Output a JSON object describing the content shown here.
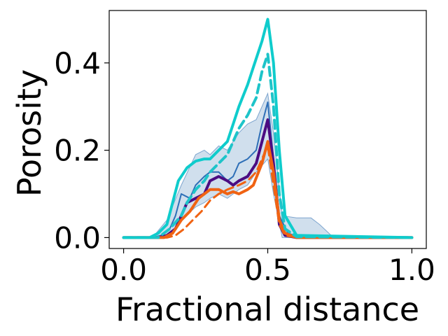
{
  "chart_data": {
    "type": "line",
    "title": "",
    "xlabel": "Fractional distance",
    "ylabel": "Porosity",
    "xlim": [
      -0.05,
      1.05
    ],
    "ylim": [
      -0.025,
      0.52
    ],
    "xticks": [
      0.0,
      0.5,
      1.0
    ],
    "xtick_labels": [
      "0.0",
      "0.5",
      "1.0"
    ],
    "yticks": [
      0.0,
      0.2,
      0.4
    ],
    "ytick_labels": [
      "0.0",
      "0.2",
      "0.4"
    ],
    "grid": false,
    "legend": "none",
    "band": {
      "color": "#a9c4df",
      "x": [
        0.1,
        0.15,
        0.2,
        0.25,
        0.28,
        0.3,
        0.33,
        0.36,
        0.4,
        0.43,
        0.46,
        0.5,
        0.52,
        0.55,
        0.6,
        0.65,
        0.68,
        0.72,
        0.75
      ],
      "upper": [
        0.0,
        0.04,
        0.12,
        0.19,
        0.2,
        0.19,
        0.21,
        0.2,
        0.24,
        0.26,
        0.27,
        0.33,
        0.24,
        0.05,
        0.045,
        0.045,
        0.03,
        0.005,
        0.0
      ],
      "lower": [
        0.0,
        0.0,
        0.04,
        0.07,
        0.08,
        0.09,
        0.1,
        0.09,
        0.11,
        0.12,
        0.15,
        0.18,
        0.1,
        0.0,
        0.0,
        0.0,
        0.0,
        0.0,
        0.0
      ]
    },
    "series": [
      {
        "color": "#2e6fb7",
        "width": 2,
        "dash": "",
        "x": [
          0.0,
          0.1,
          0.13,
          0.16,
          0.18,
          0.2,
          0.23,
          0.25,
          0.28,
          0.3,
          0.33,
          0.36,
          0.38,
          0.4,
          0.43,
          0.46,
          0.48,
          0.5,
          0.52,
          0.54,
          0.57,
          0.6,
          0.65,
          1.0
        ],
        "y": [
          0.0,
          0.0,
          0.005,
          0.02,
          0.05,
          0.1,
          0.09,
          0.12,
          0.14,
          0.15,
          0.15,
          0.13,
          0.14,
          0.17,
          0.18,
          0.2,
          0.26,
          0.31,
          0.18,
          0.05,
          0.01,
          0.003,
          0.0,
          0.0
        ]
      },
      {
        "color": "#4b0c82",
        "width": 4,
        "dash": "",
        "x": [
          0.0,
          0.12,
          0.15,
          0.18,
          0.2,
          0.22,
          0.25,
          0.28,
          0.3,
          0.33,
          0.36,
          0.38,
          0.4,
          0.43,
          0.46,
          0.48,
          0.5,
          0.52,
          0.54,
          0.56,
          0.6,
          1.0
        ],
        "y": [
          0.0,
          0.0,
          0.005,
          0.02,
          0.05,
          0.08,
          0.09,
          0.1,
          0.13,
          0.14,
          0.13,
          0.12,
          0.13,
          0.14,
          0.17,
          0.22,
          0.27,
          0.17,
          0.03,
          0.005,
          0.0,
          0.0
        ]
      },
      {
        "color": "#f06313",
        "width": 4,
        "dash": "",
        "x": [
          0.0,
          0.14,
          0.17,
          0.2,
          0.23,
          0.26,
          0.28,
          0.3,
          0.33,
          0.36,
          0.38,
          0.4,
          0.43,
          0.45,
          0.48,
          0.5,
          0.52,
          0.54,
          0.56,
          0.6,
          1.0
        ],
        "y": [
          0.0,
          0.0,
          0.01,
          0.04,
          0.06,
          0.09,
          0.1,
          0.11,
          0.11,
          0.1,
          0.105,
          0.1,
          0.11,
          0.12,
          0.17,
          0.22,
          0.15,
          0.04,
          0.01,
          0.0,
          0.0
        ]
      },
      {
        "color": "#f06313",
        "width": 3,
        "dash": "12 7",
        "x": [
          0.0,
          0.15,
          0.18,
          0.21,
          0.24,
          0.27,
          0.3,
          0.33,
          0.36,
          0.4,
          0.43,
          0.46,
          0.48,
          0.5,
          0.52,
          0.54,
          0.56,
          0.6,
          1.0
        ],
        "y": [
          0.0,
          0.0,
          0.005,
          0.02,
          0.04,
          0.06,
          0.085,
          0.1,
          0.11,
          0.12,
          0.13,
          0.15,
          0.18,
          0.21,
          0.12,
          0.03,
          0.005,
          0.0,
          0.0
        ]
      },
      {
        "color": "#1ec4c9",
        "width": 4,
        "dash": "12 7",
        "x": [
          0.0,
          0.12,
          0.16,
          0.2,
          0.22,
          0.25,
          0.28,
          0.3,
          0.33,
          0.36,
          0.38,
          0.4,
          0.43,
          0.46,
          0.48,
          0.5,
          0.52,
          0.54,
          0.56,
          0.6,
          1.0
        ],
        "y": [
          0.0,
          0.0,
          0.02,
          0.05,
          0.08,
          0.11,
          0.13,
          0.15,
          0.17,
          0.19,
          0.22,
          0.25,
          0.28,
          0.32,
          0.38,
          0.42,
          0.3,
          0.1,
          0.02,
          0.002,
          0.0
        ]
      },
      {
        "color": "#0fcccc",
        "width": 4,
        "dash": "",
        "x": [
          0.0,
          0.09,
          0.12,
          0.15,
          0.17,
          0.19,
          0.22,
          0.25,
          0.28,
          0.3,
          0.33,
          0.36,
          0.38,
          0.4,
          0.43,
          0.45,
          0.48,
          0.5,
          0.52,
          0.54,
          0.56,
          0.6,
          1.0
        ],
        "y": [
          0.0,
          0.0,
          0.01,
          0.03,
          0.08,
          0.13,
          0.16,
          0.175,
          0.18,
          0.18,
          0.2,
          0.22,
          0.26,
          0.3,
          0.35,
          0.39,
          0.45,
          0.5,
          0.4,
          0.2,
          0.05,
          0.005,
          0.0
        ]
      }
    ]
  }
}
